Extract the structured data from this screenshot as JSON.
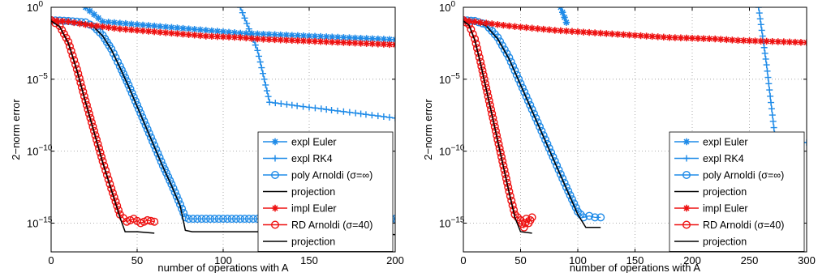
{
  "chart_data": [
    {
      "type": "line",
      "xlabel": "number of operations with A",
      "ylabel": "2−norm error",
      "xlim": [
        0,
        200
      ],
      "ylim_exponents": [
        -17,
        0
      ],
      "yscale": "log",
      "grid": "dotted",
      "legend_position": "bottom-right",
      "x_ticks": [
        "0",
        "50",
        "100",
        "150",
        "200"
      ],
      "y_ticks": [
        {
          "base": "10",
          "exp": "0",
          "value": 0
        },
        {
          "base": "10",
          "exp": "−5",
          "value": -5
        },
        {
          "base": "10",
          "exp": "−10",
          "value": -10
        },
        {
          "base": "10",
          "exp": "−15",
          "value": -15
        }
      ],
      "legend": [
        {
          "label": "expl Euler",
          "color": "#1f8be8",
          "marker": "star"
        },
        {
          "label": "expl RK4",
          "color": "#1f8be8",
          "marker": "plus"
        },
        {
          "label": "poly Arnoldi (σ=∞)",
          "color": "#1f8be8",
          "marker": "circle"
        },
        {
          "label": "projection",
          "color": "#000000",
          "marker": "none"
        },
        {
          "label": "impl Euler",
          "color": "#ee1111",
          "marker": "star"
        },
        {
          "label": "RD Arnoldi (σ=40)",
          "color": "#ee1111",
          "marker": "circle"
        },
        {
          "label": "projection",
          "color": "#000000",
          "marker": "none"
        }
      ],
      "series": [
        {
          "legend_index": 0,
          "color": "#1f8be8",
          "marker": "star",
          "x": [
            20,
            30,
            40,
            50,
            60,
            70,
            80,
            90,
            100,
            110,
            120,
            130,
            140,
            150,
            160,
            170,
            180,
            190,
            200
          ],
          "y": [
            0,
            -1.0,
            -1.1,
            -1.2,
            -1.3,
            -1.4,
            -1.5,
            -1.6,
            -1.7,
            -1.8,
            -1.85,
            -1.9,
            -1.95,
            -2.0,
            -2.05,
            -2.1,
            -2.15,
            -2.2,
            -2.25
          ]
        },
        {
          "legend_index": 1,
          "color": "#1f8be8",
          "marker": "plus",
          "x": [
            110,
            120,
            127,
            137,
            143,
            150,
            157,
            163,
            170,
            177,
            183,
            190,
            200
          ],
          "y": [
            0,
            -3.0,
            -6.6,
            -6.75,
            -6.85,
            -6.95,
            -7.05,
            -7.15,
            -7.25,
            -7.35,
            -7.45,
            -7.55,
            -7.7
          ]
        },
        {
          "legend_index": 2,
          "color": "#1f8be8",
          "marker": "circle",
          "x": [
            0,
            10,
            20,
            25,
            30,
            35,
            40,
            45,
            50,
            55,
            60,
            65,
            70,
            75,
            78,
            80,
            90,
            100,
            110,
            120,
            130,
            140,
            150,
            160,
            170,
            180,
            190,
            200
          ],
          "y": [
            -0.9,
            -0.95,
            -1.05,
            -1.35,
            -1.95,
            -2.9,
            -4.1,
            -5.4,
            -6.8,
            -8.2,
            -9.6,
            -11.0,
            -12.3,
            -13.7,
            -14.6,
            -14.7,
            -14.7,
            -14.7,
            -14.7,
            -14.7,
            -14.7,
            -14.7,
            -14.7,
            -14.7,
            -14.7,
            -14.7,
            -14.7,
            -14.7
          ]
        },
        {
          "legend_index": 3,
          "color": "#000000",
          "marker": "none",
          "x": [
            0,
            10,
            20,
            25,
            30,
            35,
            40,
            45,
            50,
            55,
            60,
            65,
            70,
            75,
            78,
            82,
            90,
            100,
            120,
            140,
            160,
            180,
            200
          ],
          "y": [
            -0.95,
            -1.0,
            -1.1,
            -1.4,
            -2.0,
            -2.95,
            -4.2,
            -5.5,
            -6.9,
            -8.3,
            -9.7,
            -11.1,
            -12.4,
            -13.8,
            -15.5,
            -15.6,
            -15.6,
            -15.6,
            -15.6,
            -15.6,
            -15.6,
            -15.6,
            -15.8
          ]
        },
        {
          "legend_index": 4,
          "color": "#ee1111",
          "marker": "star",
          "x": [
            0,
            10,
            20,
            30,
            40,
            50,
            60,
            70,
            80,
            90,
            100,
            110,
            120,
            130,
            140,
            150,
            160,
            170,
            180,
            190,
            200
          ],
          "y": [
            -0.9,
            -1.0,
            -1.2,
            -1.35,
            -1.5,
            -1.6,
            -1.7,
            -1.8,
            -1.9,
            -2.0,
            -2.05,
            -2.1,
            -2.2,
            -2.25,
            -2.3,
            -2.35,
            -2.4,
            -2.45,
            -2.5,
            -2.55,
            -2.6
          ]
        },
        {
          "legend_index": 5,
          "color": "#ee1111",
          "marker": "circle",
          "x": [
            0,
            5,
            10,
            15,
            20,
            25,
            30,
            35,
            40,
            44,
            48,
            52,
            56,
            60
          ],
          "y": [
            -0.9,
            -1.3,
            -2.4,
            -4.3,
            -6.5,
            -8.6,
            -10.7,
            -12.6,
            -14.4,
            -14.9,
            -14.7,
            -15.0,
            -14.8,
            -14.9
          ]
        },
        {
          "legend_index": 6,
          "color": "#000000",
          "marker": "none",
          "x": [
            0,
            5,
            10,
            15,
            20,
            25,
            30,
            35,
            40,
            43,
            50,
            60
          ],
          "y": [
            -0.95,
            -1.35,
            -2.5,
            -4.4,
            -6.6,
            -8.7,
            -10.8,
            -12.7,
            -14.6,
            -15.6,
            -15.6,
            -15.7
          ]
        }
      ]
    },
    {
      "type": "line",
      "xlabel": "number of operations with A",
      "ylabel": "2−norm error",
      "xlim": [
        0,
        300
      ],
      "ylim_exponents": [
        -17,
        0
      ],
      "yscale": "log",
      "grid": "dotted",
      "legend_position": "bottom-right",
      "x_ticks": [
        "0",
        "50",
        "100",
        "150",
        "200",
        "250",
        "300"
      ],
      "y_ticks": [
        {
          "base": "10",
          "exp": "0",
          "value": 0
        },
        {
          "base": "10",
          "exp": "−5",
          "value": -5
        },
        {
          "base": "10",
          "exp": "−10",
          "value": -10
        },
        {
          "base": "10",
          "exp": "−15",
          "value": -15
        }
      ],
      "legend": [
        {
          "label": "expl Euler",
          "color": "#1f8be8",
          "marker": "star"
        },
        {
          "label": "expl RK4",
          "color": "#1f8be8",
          "marker": "plus"
        },
        {
          "label": "poly Arnoldi (σ=∞)",
          "color": "#1f8be8",
          "marker": "circle"
        },
        {
          "label": "projection",
          "color": "#000000",
          "marker": "none"
        },
        {
          "label": "impl Euler",
          "color": "#ee1111",
          "marker": "star"
        },
        {
          "label": "RD Arnoldi (σ=40)",
          "color": "#ee1111",
          "marker": "circle"
        },
        {
          "label": "projection",
          "color": "#000000",
          "marker": "none"
        }
      ],
      "series": [
        {
          "legend_index": 0,
          "color": "#1f8be8",
          "marker": "star",
          "x": [
            85,
            90
          ],
          "y": [
            0,
            -1.05
          ]
        },
        {
          "legend_index": 1,
          "color": "#1f8be8",
          "marker": "plus",
          "x": [
            258,
            265,
            272,
            280,
            290,
            300
          ],
          "y": [
            0,
            -4.0,
            -8.8,
            -9.1,
            -9.3,
            -9.4
          ]
        },
        {
          "legend_index": 2,
          "color": "#1f8be8",
          "marker": "circle",
          "x": [
            0,
            10,
            20,
            30,
            40,
            50,
            60,
            70,
            80,
            90,
            100,
            105,
            110,
            115,
            120
          ],
          "y": [
            -0.9,
            -0.95,
            -1.2,
            -2.1,
            -3.5,
            -5.3,
            -7.1,
            -8.9,
            -10.7,
            -12.5,
            -14.2,
            -14.6,
            -14.5,
            -14.6,
            -14.6
          ]
        },
        {
          "legend_index": 3,
          "color": "#000000",
          "marker": "none",
          "x": [
            0,
            10,
            20,
            30,
            40,
            50,
            60,
            70,
            80,
            90,
            100,
            107,
            120
          ],
          "y": [
            -0.95,
            -1.0,
            -1.3,
            -2.2,
            -3.6,
            -5.4,
            -7.2,
            -9.0,
            -10.8,
            -12.6,
            -14.4,
            -15.3,
            -15.3
          ]
        },
        {
          "legend_index": 4,
          "color": "#ee1111",
          "marker": "star",
          "x": [
            0,
            20,
            40,
            60,
            80,
            100,
            120,
            140,
            160,
            180,
            200,
            220,
            240,
            260,
            280,
            300
          ],
          "y": [
            -0.9,
            -1.1,
            -1.3,
            -1.45,
            -1.6,
            -1.7,
            -1.8,
            -1.9,
            -2.0,
            -2.1,
            -2.15,
            -2.2,
            -2.3,
            -2.35,
            -2.4,
            -2.45
          ]
        },
        {
          "legend_index": 5,
          "color": "#ee1111",
          "marker": "circle",
          "x": [
            0,
            5,
            10,
            15,
            20,
            25,
            30,
            35,
            40,
            45,
            50,
            53,
            55,
            57,
            60
          ],
          "y": [
            -0.9,
            -1.2,
            -2.2,
            -3.8,
            -5.6,
            -7.4,
            -9.2,
            -11.0,
            -12.8,
            -14.4,
            -14.8,
            -15.3,
            -14.7,
            -15.0,
            -14.6
          ]
        },
        {
          "legend_index": 6,
          "color": "#000000",
          "marker": "none",
          "x": [
            0,
            5,
            10,
            15,
            20,
            25,
            30,
            35,
            40,
            45,
            50,
            60
          ],
          "y": [
            -0.95,
            -1.25,
            -2.3,
            -3.9,
            -5.7,
            -7.5,
            -9.3,
            -11.1,
            -12.9,
            -14.6,
            -15.6,
            -15.7
          ]
        }
      ]
    }
  ]
}
